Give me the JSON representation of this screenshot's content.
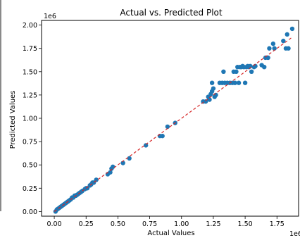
{
  "chart_data": {
    "type": "scatter",
    "title": "Actual vs. Predicted Plot",
    "xlabel": "Actual Values",
    "ylabel": "Predicted Values",
    "x_offset_label": "1e6",
    "y_offset_label": "1e6",
    "xlim": [
      -0.1,
      1.92
    ],
    "ylim": [
      -0.05,
      2.05
    ],
    "x_ticks": [
      0.0,
      0.25,
      0.5,
      0.75,
      1.0,
      1.25,
      1.5,
      1.75
    ],
    "x_tick_labels": [
      "0.00",
      "0.25",
      "0.50",
      "0.75",
      "1.00",
      "1.25",
      "1.50",
      "1.75"
    ],
    "y_ticks": [
      0.0,
      0.25,
      0.5,
      0.75,
      1.0,
      1.25,
      1.5,
      1.75,
      2.0
    ],
    "y_tick_labels": [
      "0.00",
      "0.25",
      "0.50",
      "0.75",
      "1.00",
      "1.25",
      "1.50",
      "1.75",
      "2.00"
    ],
    "grid": false,
    "point_color": "#1f77b4",
    "reference_line_color": "#d62728",
    "reference_line": {
      "x": [
        0.0,
        1.87
      ],
      "y": [
        0.0,
        1.87
      ]
    },
    "series": [
      {
        "points": [
          [
            0.01,
            0.0
          ],
          [
            0.02,
            0.02
          ],
          [
            0.03,
            0.03
          ],
          [
            0.04,
            0.04
          ],
          [
            0.05,
            0.05
          ],
          [
            0.06,
            0.06
          ],
          [
            0.07,
            0.07
          ],
          [
            0.08,
            0.08
          ],
          [
            0.09,
            0.09
          ],
          [
            0.1,
            0.1
          ],
          [
            0.11,
            0.11
          ],
          [
            0.12,
            0.12
          ],
          [
            0.13,
            0.13
          ],
          [
            0.14,
            0.15
          ],
          [
            0.15,
            0.15
          ],
          [
            0.16,
            0.17
          ],
          [
            0.17,
            0.17
          ],
          [
            0.18,
            0.18
          ],
          [
            0.19,
            0.19
          ],
          [
            0.2,
            0.2
          ],
          [
            0.21,
            0.21
          ],
          [
            0.22,
            0.22
          ],
          [
            0.24,
            0.24
          ],
          [
            0.25,
            0.25
          ],
          [
            0.26,
            0.25
          ],
          [
            0.28,
            0.28
          ],
          [
            0.29,
            0.29
          ],
          [
            0.3,
            0.31
          ],
          [
            0.31,
            0.31
          ],
          [
            0.33,
            0.34
          ],
          [
            0.42,
            0.4
          ],
          [
            0.44,
            0.42
          ],
          [
            0.45,
            0.46
          ],
          [
            0.46,
            0.48
          ],
          [
            0.54,
            0.52
          ],
          [
            0.59,
            0.57
          ],
          [
            0.72,
            0.71
          ],
          [
            0.83,
            0.81
          ],
          [
            0.85,
            0.81
          ],
          [
            0.89,
            0.91
          ],
          [
            0.95,
            0.95
          ],
          [
            1.17,
            1.18
          ],
          [
            1.19,
            1.18
          ],
          [
            1.21,
            1.23
          ],
          [
            1.22,
            1.2
          ],
          [
            1.23,
            1.26
          ],
          [
            1.24,
            1.29
          ],
          [
            1.24,
            1.38
          ],
          [
            1.25,
            1.32
          ],
          [
            1.26,
            1.23
          ],
          [
            1.27,
            1.25
          ],
          [
            1.3,
            1.38
          ],
          [
            1.32,
            1.38
          ],
          [
            1.33,
            1.5
          ],
          [
            1.34,
            1.38
          ],
          [
            1.36,
            1.38
          ],
          [
            1.38,
            1.38
          ],
          [
            1.4,
            1.38
          ],
          [
            1.41,
            1.5
          ],
          [
            1.42,
            1.38
          ],
          [
            1.43,
            1.5
          ],
          [
            1.44,
            1.55
          ],
          [
            1.45,
            1.38
          ],
          [
            1.46,
            1.55
          ],
          [
            1.47,
            1.55
          ],
          [
            1.48,
            1.56
          ],
          [
            1.49,
            1.55
          ],
          [
            1.5,
            1.38
          ],
          [
            1.51,
            1.55
          ],
          [
            1.52,
            1.56
          ],
          [
            1.53,
            1.55
          ],
          [
            1.54,
            1.56
          ],
          [
            1.55,
            1.5
          ],
          [
            1.57,
            1.55
          ],
          [
            1.58,
            1.56
          ],
          [
            1.63,
            1.57
          ],
          [
            1.65,
            1.55
          ],
          [
            1.66,
            1.65
          ],
          [
            1.68,
            1.65
          ],
          [
            1.69,
            1.75
          ],
          [
            1.72,
            1.8
          ],
          [
            1.73,
            1.75
          ],
          [
            1.8,
            1.83
          ],
          [
            1.82,
            1.75
          ],
          [
            1.83,
            1.9
          ],
          [
            1.84,
            1.75
          ],
          [
            1.87,
            1.96
          ]
        ]
      }
    ]
  }
}
